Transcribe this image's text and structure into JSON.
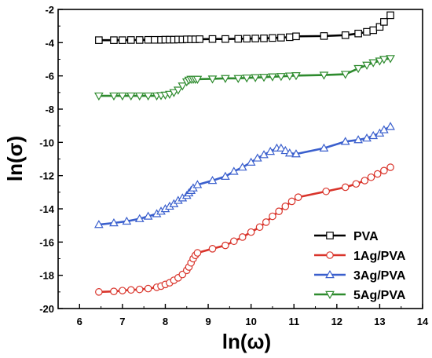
{
  "chart_data": {
    "type": "line",
    "title": "",
    "xlabel": "ln(ω)",
    "ylabel": "ln(σ)",
    "xlim": [
      5.5,
      14
    ],
    "ylim": [
      -20,
      -2
    ],
    "x_ticks": [
      "6",
      "7",
      "8",
      "9",
      "10",
      "11",
      "12",
      "13",
      "14"
    ],
    "y_ticks": [
      "-20",
      "-18",
      "-16",
      "-14",
      "-12",
      "-10",
      "-8",
      "-6",
      "-4",
      "-2"
    ],
    "grid": false,
    "legend_position": "bottom-right",
    "series": [
      {
        "name": "PVA",
        "color": "#000000",
        "marker": "square",
        "x": [
          6.45,
          6.8,
          7.0,
          7.2,
          7.4,
          7.6,
          7.75,
          7.9,
          8.0,
          8.1,
          8.2,
          8.3,
          8.4,
          8.5,
          8.6,
          8.7,
          8.8,
          9.1,
          9.4,
          9.7,
          9.9,
          10.1,
          10.3,
          10.5,
          10.7,
          10.9,
          11.05,
          11.7,
          12.2,
          12.5,
          12.7,
          12.85,
          13.0,
          13.1,
          13.25
        ],
        "y": [
          -3.85,
          -3.85,
          -3.85,
          -3.84,
          -3.84,
          -3.83,
          -3.83,
          -3.83,
          -3.82,
          -3.82,
          -3.82,
          -3.81,
          -3.81,
          -3.8,
          -3.8,
          -3.8,
          -3.79,
          -3.78,
          -3.78,
          -3.77,
          -3.76,
          -3.75,
          -3.74,
          -3.72,
          -3.7,
          -3.67,
          -3.62,
          -3.6,
          -3.55,
          -3.45,
          -3.35,
          -3.25,
          -3.05,
          -2.75,
          -2.35
        ]
      },
      {
        "name": "1Ag/PVA",
        "color": "#d9342b",
        "marker": "circle",
        "x": [
          6.45,
          6.8,
          7.0,
          7.2,
          7.4,
          7.6,
          7.8,
          7.9,
          8.0,
          8.1,
          8.2,
          8.3,
          8.4,
          8.5,
          8.55,
          8.6,
          8.65,
          8.7,
          8.75,
          9.1,
          9.4,
          9.6,
          9.8,
          10.0,
          10.2,
          10.35,
          10.5,
          10.65,
          10.8,
          10.95,
          11.1,
          11.75,
          12.2,
          12.45,
          12.65,
          12.8,
          12.95,
          13.1,
          13.25
        ],
        "y": [
          -19.0,
          -18.97,
          -18.92,
          -18.88,
          -18.85,
          -18.8,
          -18.72,
          -18.65,
          -18.55,
          -18.45,
          -18.3,
          -18.15,
          -17.95,
          -17.7,
          -17.5,
          -17.25,
          -17.0,
          -16.8,
          -16.65,
          -16.4,
          -16.2,
          -15.95,
          -15.7,
          -15.4,
          -15.1,
          -14.8,
          -14.45,
          -14.15,
          -13.85,
          -13.55,
          -13.3,
          -12.95,
          -12.7,
          -12.5,
          -12.3,
          -12.1,
          -11.9,
          -11.7,
          -11.5
        ]
      },
      {
        "name": "3Ag/PVA",
        "color": "#3a5fcd",
        "marker": "triangle-up",
        "x": [
          6.45,
          6.8,
          7.1,
          7.4,
          7.6,
          7.8,
          7.9,
          8.0,
          8.1,
          8.2,
          8.3,
          8.4,
          8.5,
          8.55,
          8.6,
          8.65,
          8.75,
          9.1,
          9.4,
          9.6,
          9.8,
          10.0,
          10.15,
          10.3,
          10.45,
          10.6,
          10.7,
          10.8,
          10.9,
          11.05,
          11.7,
          12.2,
          12.5,
          12.7,
          12.85,
          13.0,
          13.1,
          13.25
        ],
        "y": [
          -14.95,
          -14.85,
          -14.75,
          -14.6,
          -14.45,
          -14.3,
          -14.15,
          -14.0,
          -13.85,
          -13.7,
          -13.5,
          -13.35,
          -13.2,
          -13.05,
          -12.9,
          -12.75,
          -12.55,
          -12.3,
          -12.05,
          -11.75,
          -11.5,
          -11.2,
          -10.95,
          -10.75,
          -10.55,
          -10.35,
          -10.35,
          -10.5,
          -10.65,
          -10.7,
          -10.35,
          -9.95,
          -9.85,
          -9.75,
          -9.6,
          -9.45,
          -9.25,
          -9.05
        ]
      },
      {
        "name": "5Ag/PVA",
        "color": "#2e8b2e",
        "marker": "triangle-down",
        "x": [
          6.45,
          6.8,
          7.0,
          7.2,
          7.4,
          7.6,
          7.8,
          7.9,
          8.0,
          8.1,
          8.2,
          8.3,
          8.4,
          8.5,
          8.55,
          8.6,
          8.65,
          8.7,
          8.75,
          9.1,
          9.4,
          9.7,
          9.9,
          10.1,
          10.3,
          10.5,
          10.7,
          10.9,
          11.05,
          11.7,
          12.2,
          12.5,
          12.7,
          12.85,
          13.0,
          13.1,
          13.25
        ],
        "y": [
          -7.2,
          -7.2,
          -7.2,
          -7.2,
          -7.2,
          -7.2,
          -7.2,
          -7.18,
          -7.15,
          -7.1,
          -7.0,
          -6.85,
          -6.6,
          -6.35,
          -6.25,
          -6.2,
          -6.2,
          -6.2,
          -6.2,
          -6.18,
          -6.15,
          -6.15,
          -6.12,
          -6.1,
          -6.08,
          -6.05,
          -6.03,
          -6.0,
          -5.98,
          -5.95,
          -5.9,
          -5.55,
          -5.35,
          -5.2,
          -5.1,
          -5.0,
          -4.95
        ]
      }
    ]
  }
}
